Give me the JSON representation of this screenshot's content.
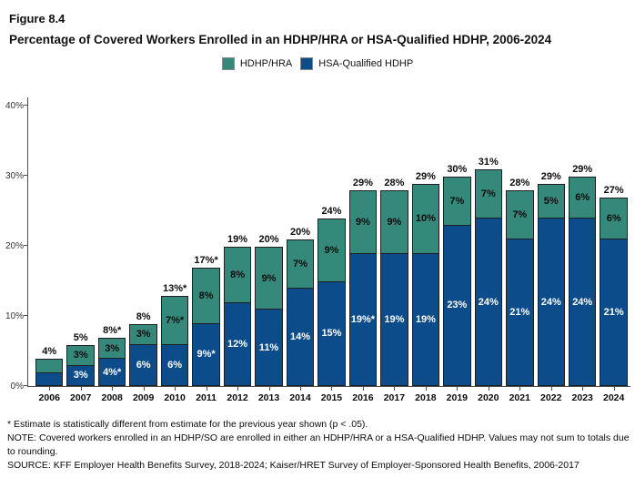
{
  "figure": {
    "label": "Figure 8.4",
    "title": "Percentage of Covered Workers Enrolled in an HDHP/HRA or HSA-Qualified HDHP, 2006-2024"
  },
  "legend": {
    "items": [
      {
        "label": "HDHP/HRA",
        "color": "#35897B"
      },
      {
        "label": "HSA-Qualified HDHP",
        "color": "#0D4C8A"
      }
    ]
  },
  "chart_data": {
    "type": "bar",
    "stacked": true,
    "title": "Percentage of Covered Workers Enrolled in an HDHP/HRA or HSA-Qualified HDHP, 2006-2024",
    "categories": [
      "2006",
      "2007",
      "2008",
      "2009",
      "2010",
      "2011",
      "2012",
      "2013",
      "2014",
      "2015",
      "2016",
      "2017",
      "2018",
      "2019",
      "2020",
      "2021",
      "2022",
      "2023",
      "2024"
    ],
    "series": [
      {
        "name": "HDHP/HRA",
        "position": "top",
        "color": "#35897B",
        "label_color": "#0b0b0b",
        "values": [
          2,
          3,
          3,
          3,
          7,
          8,
          8,
          9,
          7,
          9,
          9,
          9,
          10,
          7,
          7,
          7,
          5,
          6,
          6
        ],
        "labels": [
          "",
          "3%",
          "3%",
          "3%",
          "7%*",
          "8%",
          "8%",
          "9%",
          "7%",
          "9%",
          "9%",
          "9%",
          "10%",
          "7%",
          "7%",
          "7%",
          "5%",
          "6%",
          "6%"
        ]
      },
      {
        "name": "HSA-Qualified HDHP",
        "position": "bottom",
        "color": "#0D4C8A",
        "label_color": "#ffffff",
        "values": [
          2,
          3,
          4,
          6,
          6,
          9,
          12,
          11,
          14,
          15,
          19,
          19,
          19,
          23,
          24,
          21,
          24,
          24,
          21
        ],
        "labels": [
          "",
          "3%",
          "4%*",
          "6%",
          "6%",
          "9%*",
          "12%",
          "11%",
          "14%",
          "15%",
          "19%*",
          "19%",
          "19%",
          "23%",
          "24%",
          "21%",
          "24%",
          "24%",
          "21%"
        ]
      }
    ],
    "totals": [
      "4%",
      "5%",
      "8%*",
      "8%",
      "13%*",
      "17%*",
      "19%",
      "20%",
      "20%",
      "24%",
      "29%",
      "28%",
      "29%",
      "30%",
      "31%",
      "28%",
      "29%",
      "29%",
      "27%"
    ],
    "ytick_values": [
      0,
      10,
      20,
      30,
      40
    ],
    "ytick_labels": [
      "0%",
      "10%",
      "20%",
      "30%",
      "40%"
    ],
    "ylim": [
      0,
      41
    ],
    "grid": false,
    "legend_position": "top"
  },
  "footnotes": [
    "* Estimate is statistically different from estimate for the previous year shown (p < .05).",
    "NOTE: Covered workers enrolled in an HDHP/SO are enrolled in either an HDHP/HRA or a HSA-Qualified HDHP. Values may not sum to totals due to rounding.",
    "SOURCE: KFF Employer Health Benefits Survey, 2018-2024; Kaiser/HRET Survey of Employer-Sponsored Health Benefits, 2006-2017"
  ]
}
